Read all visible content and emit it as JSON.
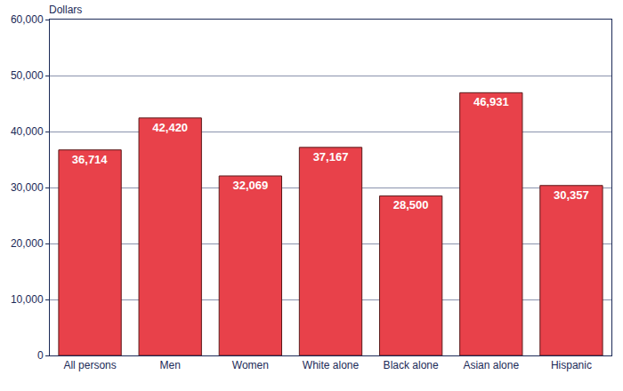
{
  "chart_data": {
    "type": "bar",
    "y_label": "Dollars",
    "categories": [
      "All persons",
      "Men",
      "Women",
      "White alone",
      "Black alone",
      "Asian alone",
      "Hispanic"
    ],
    "values": [
      36714,
      42420,
      32069,
      37167,
      28500,
      46931,
      30357
    ],
    "value_labels": [
      "36,714",
      "42,420",
      "32,069",
      "37,167",
      "28,500",
      "46,931",
      "30,357"
    ],
    "color": "#e8414a",
    "data_labels": true,
    "ylim": [
      0,
      60000
    ],
    "yticks": [
      0,
      {
        "value": 10000,
        "label": "10,000"
      },
      {
        "value": 20000,
        "label": "20,000"
      },
      {
        "value": 30000,
        "label": "30,000"
      },
      {
        "value": 40000,
        "label": "40,000"
      },
      {
        "value": 50000,
        "label": "50,000"
      },
      {
        "value": 60000,
        "label": "60,000"
      }
    ],
    "grid": true
  }
}
